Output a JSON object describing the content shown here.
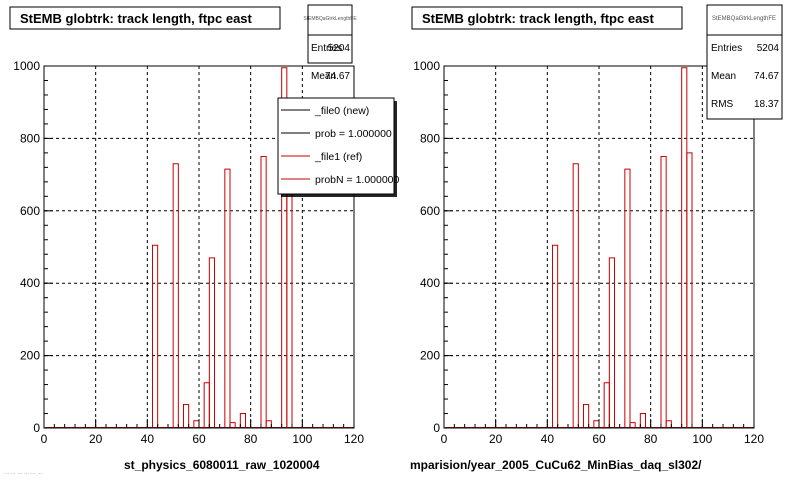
{
  "panels": [
    {
      "title": "StEMB globtrk: track length, ftpc east",
      "xlabel": "st_physics_6080011_raw_1020004",
      "stats": {
        "name": "StEMBQaGtrkLengthFE",
        "rows": [
          {
            "label": "Entries",
            "value": "5204"
          },
          {
            "label": "Mean",
            "value": "74.67"
          }
        ]
      },
      "legend": [
        {
          "label": "_file0 (new)",
          "color": "#000000"
        },
        {
          "label": "prob = 1.000000",
          "color": "#000000"
        },
        {
          "label": "_file1 (ref)",
          "color": "#cc0000"
        },
        {
          "label": "probN = 1.000000",
          "color": "#cc0000"
        }
      ]
    },
    {
      "title": "StEMB globtrk: track length, ftpc east",
      "xlabel": "mparision/year_2005_CuCu62_MinBias_daq_sl302/",
      "stats": {
        "name": "StEMBQaGtrkLengthFE",
        "rows": [
          {
            "label": "Entries",
            "value": "5204"
          },
          {
            "label": "Mean",
            "value": "74.67"
          },
          {
            "label": "RMS",
            "value": "18.37"
          }
        ]
      }
    }
  ],
  "footer_text": "... ... ... ... ... ...",
  "colors": {
    "histogram": "#cc0000",
    "frame": "#000000",
    "grid": "#000000",
    "background": "#ffffff"
  },
  "chart_data": [
    {
      "type": "bar",
      "title": "StEMB globtrk: track length, ftpc east",
      "xlabel": "st_physics_6080011_raw_1020004",
      "ylabel": "",
      "xlim": [
        0,
        120
      ],
      "ylim": [
        0,
        1000
      ],
      "xticks": [
        0,
        20,
        40,
        60,
        80,
        100,
        120
      ],
      "yticks": [
        0,
        200,
        400,
        600,
        800,
        1000
      ],
      "grid": true,
      "bin_width": 2,
      "series": [
        {
          "name": "_file1 (ref)",
          "x": [
            42,
            50,
            54,
            58,
            62,
            64,
            70,
            72,
            76,
            84,
            86,
            92,
            94
          ],
          "y": [
            505,
            730,
            65,
            20,
            125,
            470,
            715,
            15,
            40,
            750,
            20,
            995,
            760
          ]
        }
      ]
    },
    {
      "type": "bar",
      "title": "StEMB globtrk: track length, ftpc east",
      "xlabel": "mparision/year_2005_CuCu62_MinBias_daq_sl302/",
      "ylabel": "",
      "xlim": [
        0,
        120
      ],
      "ylim": [
        0,
        1000
      ],
      "xticks": [
        0,
        20,
        40,
        60,
        80,
        100,
        120
      ],
      "yticks": [
        0,
        200,
        400,
        600,
        800,
        1000
      ],
      "grid": true,
      "bin_width": 2,
      "series": [
        {
          "name": "_file1 (ref)",
          "x": [
            42,
            50,
            54,
            58,
            62,
            64,
            70,
            72,
            76,
            84,
            86,
            92,
            94
          ],
          "y": [
            505,
            730,
            65,
            20,
            125,
            470,
            715,
            15,
            40,
            750,
            20,
            995,
            760
          ]
        }
      ]
    }
  ]
}
